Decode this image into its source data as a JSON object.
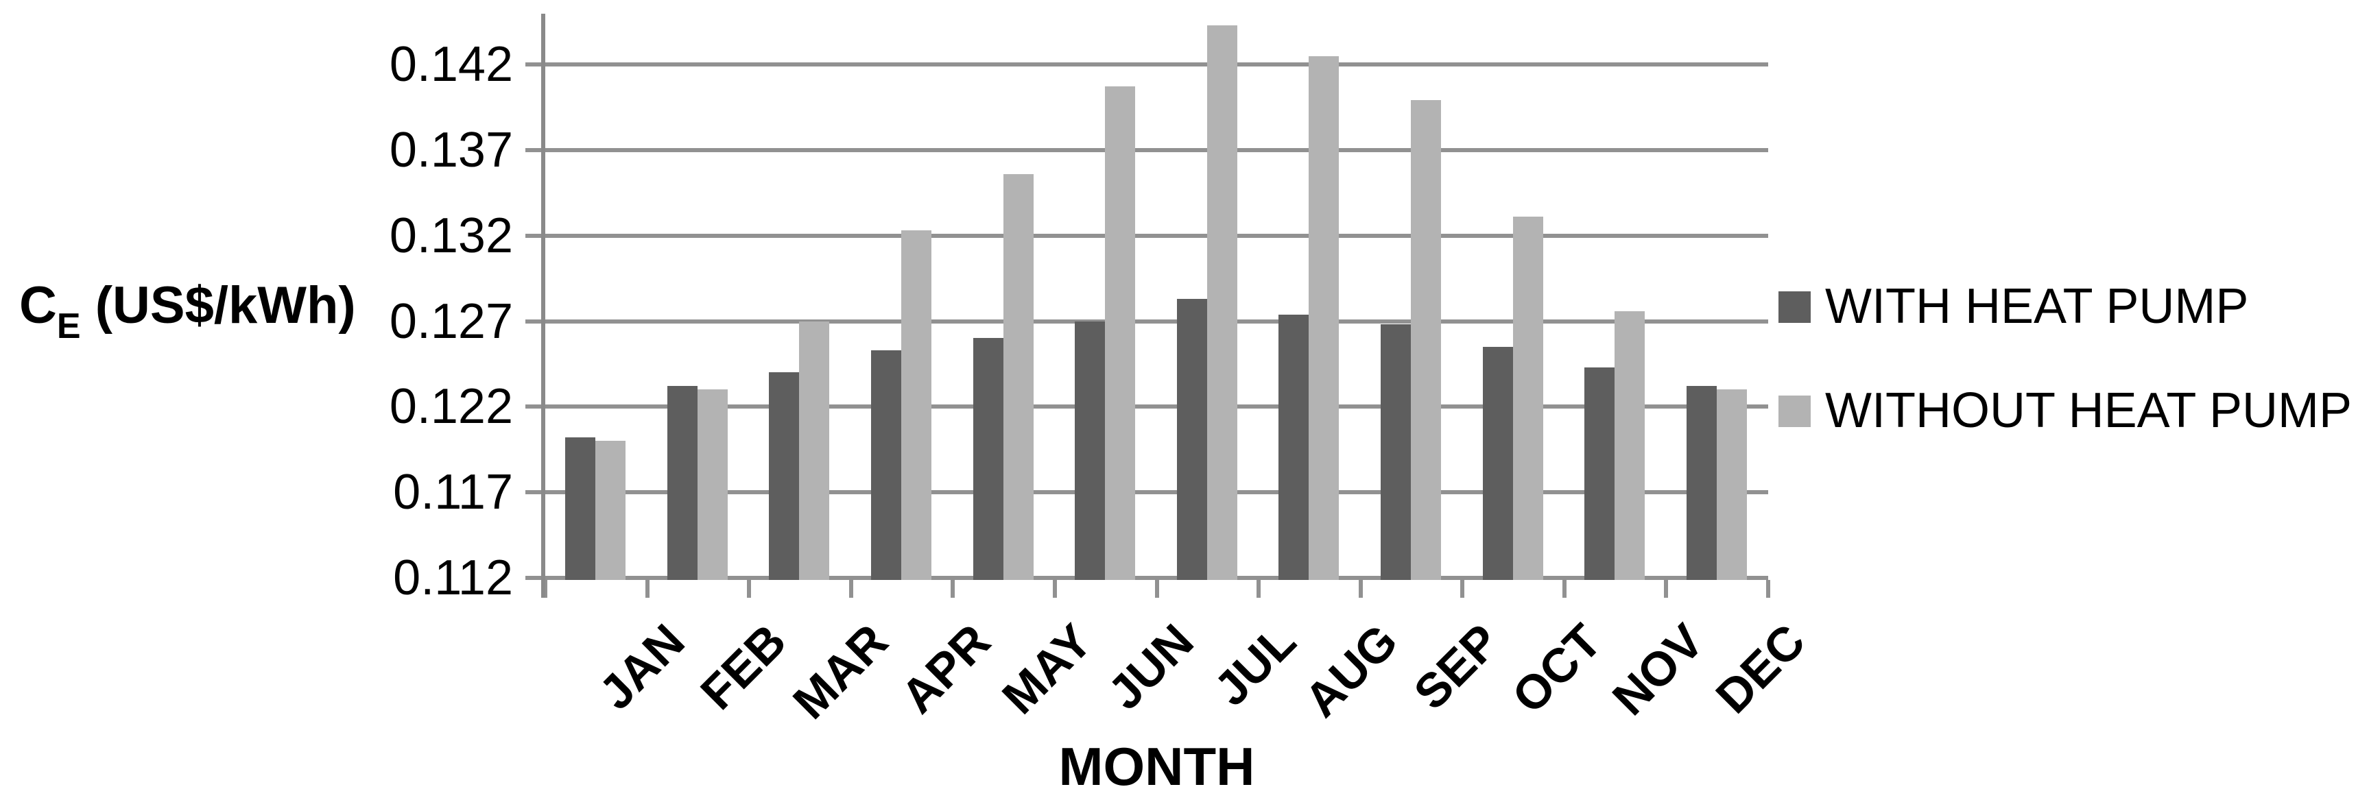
{
  "chart_data": {
    "type": "bar",
    "title": "",
    "xlabel": "MONTH",
    "ylabel": {
      "main": "C",
      "sub": "E",
      "rest": " (US$/kWh)"
    },
    "categories": [
      "JAN",
      "FEB",
      "MAR",
      "APR",
      "MAY",
      "JUN",
      "JUL",
      "AUG",
      "SEP",
      "OCT",
      "NOV",
      "DEC"
    ],
    "series": [
      {
        "name": "WITH HEAT PUMP",
        "color": "#5e5e5e",
        "values": [
          0.1202,
          0.1232,
          0.124,
          0.1253,
          0.126,
          0.127,
          0.1283,
          0.1274,
          0.1268,
          0.1255,
          0.1243,
          0.1232
        ]
      },
      {
        "name": "WITHOUT HEAT PUMP",
        "color": "#b3b3b3",
        "values": [
          0.12,
          0.123,
          0.127,
          0.1323,
          0.1356,
          0.1407,
          0.1443,
          0.1425,
          0.1399,
          0.1331,
          0.1276,
          0.123
        ]
      }
    ],
    "y_ticks": [
      "0.112",
      "0.117",
      "0.122",
      "0.127",
      "0.132",
      "0.137",
      "0.142"
    ],
    "y_tick_step": 0.005,
    "ylim": [
      0.112,
      0.1445
    ],
    "grid": true,
    "legend_position": "right",
    "colors": {
      "gridline": "#919191",
      "axis": "#8a8a8a",
      "text": "#000000",
      "background": "#ffffff"
    }
  }
}
